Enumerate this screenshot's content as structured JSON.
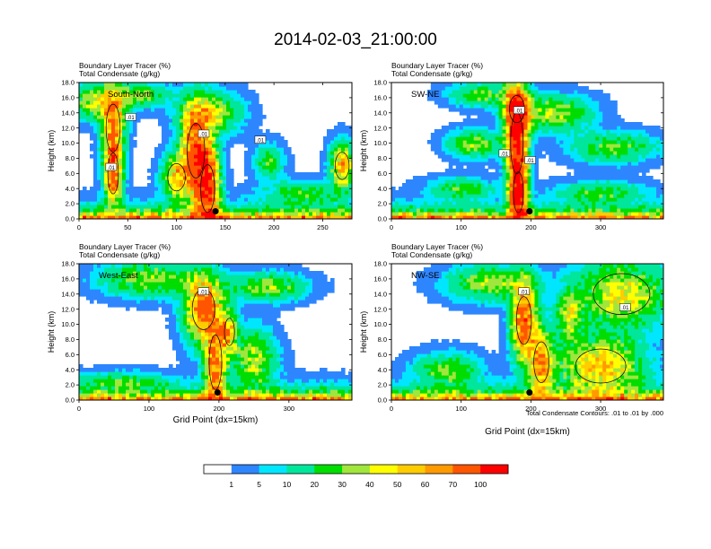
{
  "figure": {
    "title": "2014-02-03_21:00:00",
    "footnote": "Total Condensate Contours: .01 to .01 by .000"
  },
  "colors": {
    "bins": [
      "#ffffff",
      "#2e86ff",
      "#00e6ff",
      "#00e69a",
      "#00dd00",
      "#a0e63c",
      "#ffff00",
      "#ffcc00",
      "#ff9a00",
      "#ff5500",
      "#ff0000"
    ],
    "contour": "#000000",
    "marker": "#000000"
  },
  "chart_data": [
    {
      "type": "heatmap",
      "id": "south-north",
      "panel_label": "South-North",
      "title_lines": [
        "Boundary Layer Tracer   (%)",
        "Total Condensate   (g/kg)"
      ],
      "xlabel": "",
      "ylabel": "Height (km)",
      "xlim": [
        0,
        280
      ],
      "ylim": [
        0,
        18
      ],
      "xticks": [
        0,
        50,
        100,
        150,
        200,
        250
      ],
      "yticks": [
        0.0,
        2.0,
        4.0,
        6.0,
        8.0,
        10.0,
        12.0,
        14.0,
        16.0,
        18.0
      ],
      "marker": {
        "x": 140,
        "y": 1.0
      },
      "contour_labels": [
        {
          "text": ".01",
          "x": 53,
          "y": 13.4
        },
        {
          "text": ".01",
          "x": 128,
          "y": 11.2
        },
        {
          "text": ".01",
          "x": 186,
          "y": 10.4
        },
        {
          "text": ".01",
          "x": 33,
          "y": 6.8
        }
      ],
      "blobs": [
        {
          "x": 35,
          "y": 12,
          "sx": 8,
          "sy": 3.5,
          "a": 60
        },
        {
          "x": 35,
          "y": 6,
          "sx": 6,
          "sy": 3,
          "a": 70
        },
        {
          "x": 120,
          "y": 9,
          "sx": 10,
          "sy": 4,
          "a": 85
        },
        {
          "x": 132,
          "y": 4,
          "sx": 8,
          "sy": 3.5,
          "a": 95
        },
        {
          "x": 100,
          "y": 5.5,
          "sx": 10,
          "sy": 2,
          "a": 50
        },
        {
          "x": 135,
          "y": 14,
          "sx": 20,
          "sy": 1.8,
          "a": 40
        },
        {
          "x": 20,
          "y": 15.5,
          "sx": 20,
          "sy": 1.5,
          "a": 40
        },
        {
          "x": 195,
          "y": 7.5,
          "sx": 10,
          "sy": 1.5,
          "a": 25
        },
        {
          "x": 270,
          "y": 7,
          "sx": 8,
          "sy": 2,
          "a": 60
        },
        {
          "x": 230,
          "y": 3.5,
          "sx": 25,
          "sy": 1,
          "a": 25
        },
        {
          "x": 65,
          "y": 16.5,
          "sx": 18,
          "sy": 1,
          "a": 30
        }
      ]
    },
    {
      "type": "heatmap",
      "id": "sw-ne",
      "panel_label": "SW-NE",
      "title_lines": [
        "Boundary Layer Tracer   (%)",
        "Total Condensate   (g/kg)"
      ],
      "xlabel": "",
      "ylabel": "Height (km)",
      "xlim": [
        0,
        390
      ],
      "ylim": [
        0,
        18
      ],
      "xticks": [
        0,
        100,
        200,
        300
      ],
      "yticks": [
        0.0,
        2.0,
        4.0,
        6.0,
        8.0,
        10.0,
        12.0,
        14.0,
        16.0,
        18.0
      ],
      "marker": {
        "x": 198,
        "y": 1.0
      },
      "contour_labels": [
        {
          "text": ".01",
          "x": 183,
          "y": 14.3
        },
        {
          "text": ".01",
          "x": 162,
          "y": 8.6
        },
        {
          "text": ".01",
          "x": 199,
          "y": 7.7
        }
      ],
      "blobs": [
        {
          "x": 180,
          "y": 10,
          "sx": 10,
          "sy": 4.5,
          "a": 95
        },
        {
          "x": 182,
          "y": 3.5,
          "sx": 8,
          "sy": 3,
          "a": 95
        },
        {
          "x": 180,
          "y": 14.5,
          "sx": 12,
          "sy": 2,
          "a": 70
        },
        {
          "x": 120,
          "y": 10,
          "sx": 25,
          "sy": 1.2,
          "a": 35
        },
        {
          "x": 230,
          "y": 14,
          "sx": 35,
          "sy": 1.5,
          "a": 40
        },
        {
          "x": 320,
          "y": 9.5,
          "sx": 40,
          "sy": 1.3,
          "a": 30
        },
        {
          "x": 100,
          "y": 4,
          "sx": 30,
          "sy": 1,
          "a": 25
        },
        {
          "x": 300,
          "y": 3.5,
          "sx": 40,
          "sy": 1,
          "a": 25
        },
        {
          "x": 130,
          "y": 16.5,
          "sx": 30,
          "sy": 1,
          "a": 30
        }
      ]
    },
    {
      "type": "heatmap",
      "id": "west-east",
      "panel_label": "West-East",
      "title_lines": [
        "Boundary Layer Tracer   (%)",
        "Total Condensate   (g/kg)"
      ],
      "xlabel": "Grid Point (dx=15km)",
      "ylabel": "Height (km)",
      "xlim": [
        0,
        390
      ],
      "ylim": [
        0,
        18
      ],
      "xticks": [
        0,
        100,
        200,
        300
      ],
      "yticks": [
        0.0,
        2.0,
        4.0,
        6.0,
        8.0,
        10.0,
        12.0,
        14.0,
        16.0,
        18.0
      ],
      "marker": {
        "x": 198,
        "y": 1.0
      },
      "contour_labels": [
        {
          "text": ".01",
          "x": 178,
          "y": 14.3
        }
      ],
      "blobs": [
        {
          "x": 178,
          "y": 12,
          "sx": 18,
          "sy": 3,
          "a": 75
        },
        {
          "x": 195,
          "y": 5,
          "sx": 10,
          "sy": 4,
          "a": 70
        },
        {
          "x": 250,
          "y": 5.5,
          "sx": 20,
          "sy": 2.5,
          "a": 40
        },
        {
          "x": 100,
          "y": 16,
          "sx": 45,
          "sy": 1.5,
          "a": 35
        },
        {
          "x": 270,
          "y": 15,
          "sx": 35,
          "sy": 1.2,
          "a": 35
        },
        {
          "x": 60,
          "y": 2.5,
          "sx": 40,
          "sy": 0.8,
          "a": 25
        },
        {
          "x": 215,
          "y": 9,
          "sx": 8,
          "sy": 2,
          "a": 50
        }
      ]
    },
    {
      "type": "heatmap",
      "id": "nw-se",
      "panel_label": "NW-SE",
      "title_lines": [
        "Boundary Layer Tracer   (%)",
        "Total Condensate   (g/kg)"
      ],
      "xlabel": "Grid Point (dx=15km)",
      "ylabel": "Height (km)",
      "xlim": [
        0,
        390
      ],
      "ylim": [
        0,
        18
      ],
      "xticks": [
        0,
        100,
        200,
        300
      ],
      "yticks": [
        0.0,
        2.0,
        4.0,
        6.0,
        8.0,
        10.0,
        12.0,
        14.0,
        16.0,
        18.0
      ],
      "marker": {
        "x": 198,
        "y": 1.0
      },
      "contour_labels": [
        {
          "text": ".01",
          "x": 190,
          "y": 14.3
        },
        {
          "text": ".01",
          "x": 335,
          "y": 12.2
        }
      ],
      "blobs": [
        {
          "x": 190,
          "y": 10.5,
          "sx": 12,
          "sy": 3.5,
          "a": 80
        },
        {
          "x": 215,
          "y": 5,
          "sx": 12,
          "sy": 3,
          "a": 60
        },
        {
          "x": 300,
          "y": 4.5,
          "sx": 40,
          "sy": 2.5,
          "a": 55
        },
        {
          "x": 330,
          "y": 14,
          "sx": 45,
          "sy": 3,
          "a": 45
        },
        {
          "x": 80,
          "y": 4,
          "sx": 30,
          "sy": 1.5,
          "a": 30
        },
        {
          "x": 140,
          "y": 15.5,
          "sx": 40,
          "sy": 1.5,
          "a": 35
        },
        {
          "x": 255,
          "y": 11,
          "sx": 12,
          "sy": 2,
          "a": 40
        }
      ]
    }
  ],
  "colorbar": {
    "bounds": [
      0,
      1,
      5,
      10,
      20,
      30,
      40,
      50,
      60,
      70,
      100
    ],
    "labels": [
      "1",
      "5",
      "10",
      "20",
      "30",
      "40",
      "50",
      "60",
      "70",
      "100"
    ]
  }
}
